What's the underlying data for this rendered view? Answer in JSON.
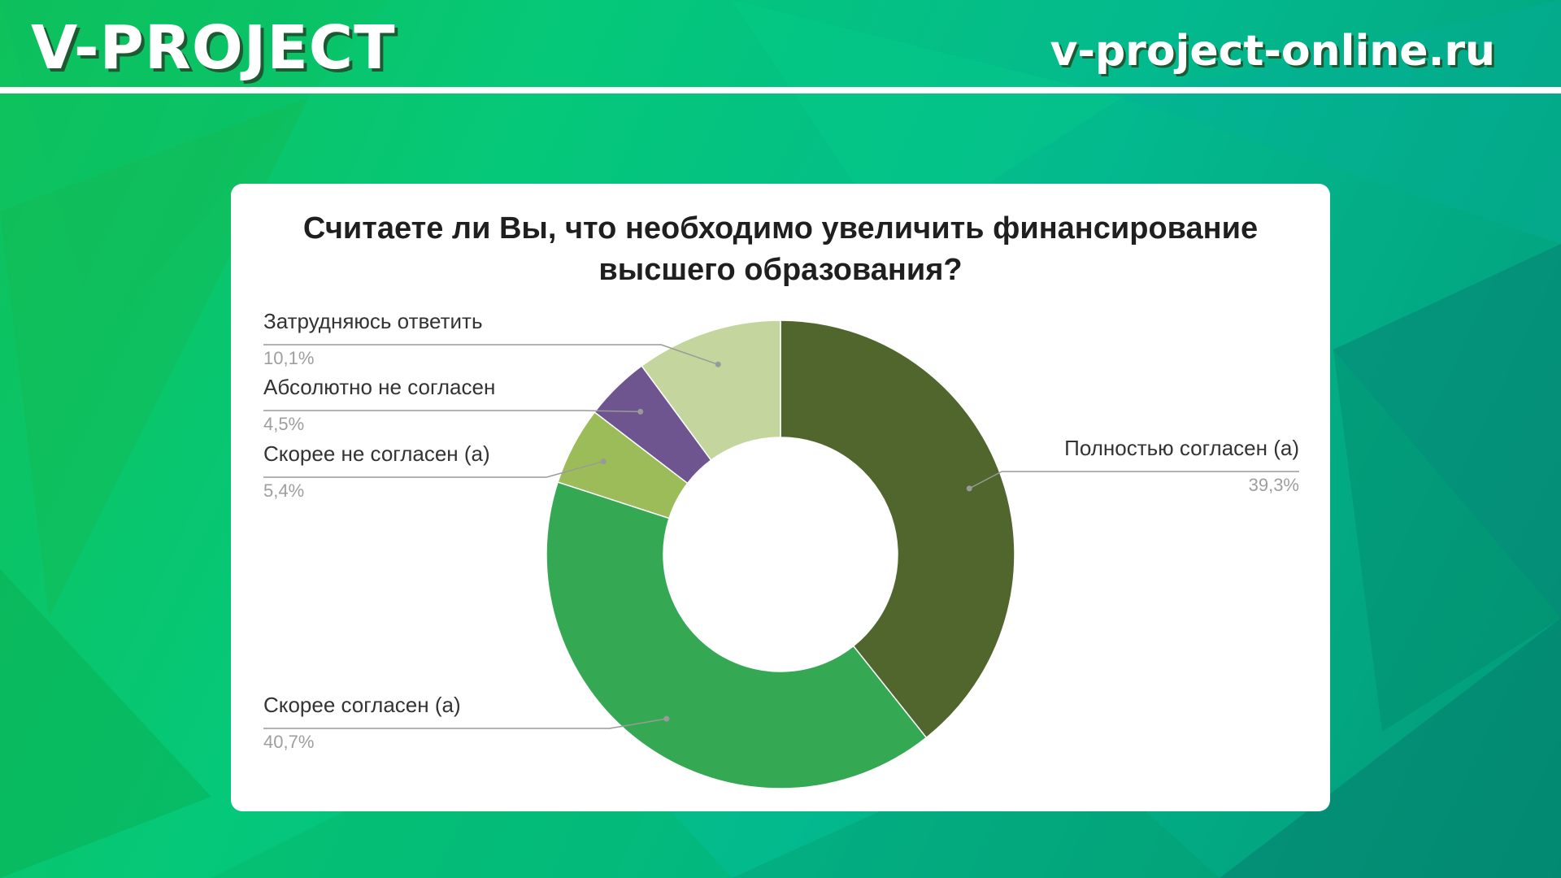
{
  "header": {
    "brand": "V-PROJECT",
    "site_url": "v-project-online.ru"
  },
  "colors": {
    "page_bg": "#05c879",
    "accent": "#ffffff",
    "brand_shadow": "#1d5a33"
  },
  "chart_data": {
    "type": "pie",
    "variant": "donut",
    "title": "Считаете ли Вы, что необходимо увеличить финансирование высшего образования?",
    "slices": [
      {
        "label": "Полностью согласен (а)",
        "value": 39.3,
        "value_label": "39,3%",
        "color": "#50662d"
      },
      {
        "label": "Скорее согласен (а)",
        "value": 40.7,
        "value_label": "40,7%",
        "color": "#35a853"
      },
      {
        "label": "Скорее не согласен (а)",
        "value": 5.4,
        "value_label": "5,4%",
        "color": "#9cbc5a"
      },
      {
        "label": "Абсолютно не согласен",
        "value": 4.5,
        "value_label": "4,5%",
        "color": "#6e5590"
      },
      {
        "label": "Затрудняюсь ответить",
        "value": 10.1,
        "value_label": "10,1%",
        "color": "#c4d69e"
      }
    ],
    "legend": "none (callout labels)"
  }
}
